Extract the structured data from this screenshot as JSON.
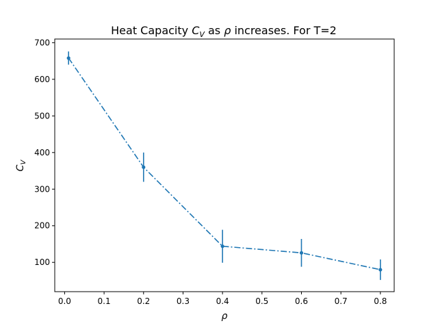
{
  "chart_data": {
    "type": "line",
    "title_main": "Heat Capacity ",
    "title_symbol": "C",
    "title_subscript": "V",
    "title_mid": " as ",
    "title_rho": "ρ",
    "title_end": " increases. For T=2",
    "xlabel": "ρ",
    "ylabel_symbol": "C",
    "ylabel_subscript": "V",
    "xlim": [
      -0.025,
      0.835
    ],
    "ylim": [
      20,
      710
    ],
    "x_ticks": [
      0.0,
      0.1,
      0.2,
      0.3,
      0.4,
      0.5,
      0.6,
      0.7,
      0.8
    ],
    "x_tick_labels": [
      "0.0",
      "0.1",
      "0.2",
      "0.3",
      "0.4",
      "0.5",
      "0.6",
      "0.7",
      "0.8"
    ],
    "y_ticks": [
      100,
      200,
      300,
      400,
      500,
      600,
      700
    ],
    "y_tick_labels": [
      "100",
      "200",
      "300",
      "400",
      "500",
      "600",
      "700"
    ],
    "grid": false,
    "series": [
      {
        "name": "C_V",
        "color": "#1f77b4",
        "line_style": "dashdot",
        "marker": "point",
        "x": [
          0.01,
          0.2,
          0.4,
          0.6,
          0.8
        ],
        "y": [
          658,
          360,
          144,
          126,
          80
        ],
        "yerr": [
          18,
          40,
          45,
          38,
          28
        ]
      }
    ]
  }
}
